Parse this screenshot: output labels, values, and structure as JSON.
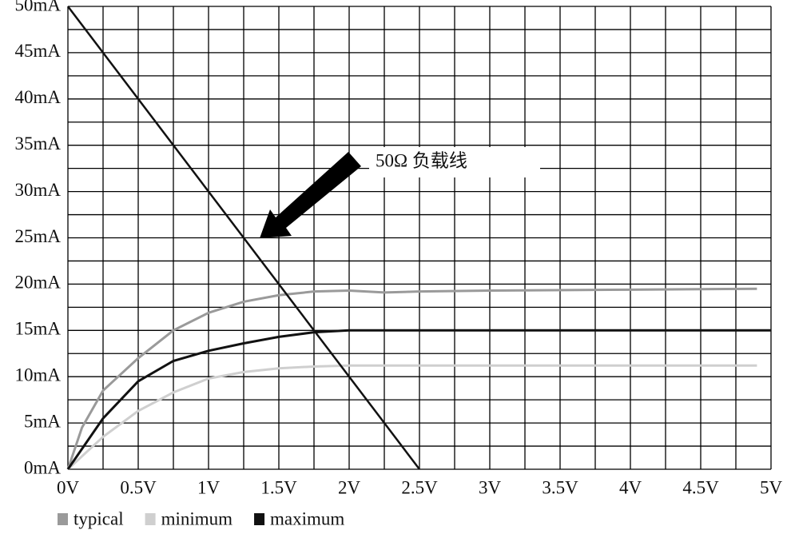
{
  "chart_data": {
    "type": "line",
    "xlim": [
      0,
      5
    ],
    "ylim": [
      0,
      50
    ],
    "xticks": [
      {
        "value": 0,
        "label": "0V"
      },
      {
        "value": 0.5,
        "label": "0.5V"
      },
      {
        "value": 1,
        "label": "1V"
      },
      {
        "value": 1.5,
        "label": "1.5V"
      },
      {
        "value": 2,
        "label": "2V"
      },
      {
        "value": 2.5,
        "label": "2.5V"
      },
      {
        "value": 3,
        "label": "3V"
      },
      {
        "value": 3.5,
        "label": "3.5V"
      },
      {
        "value": 4,
        "label": "4V"
      },
      {
        "value": 4.5,
        "label": "4.5V"
      },
      {
        "value": 5,
        "label": "5V"
      }
    ],
    "yticks": [
      {
        "value": 0,
        "label": "0mA"
      },
      {
        "value": 5,
        "label": "5mA"
      },
      {
        "value": 10,
        "label": "10mA"
      },
      {
        "value": 15,
        "label": "15mA"
      },
      {
        "value": 20,
        "label": "20mA"
      },
      {
        "value": 25,
        "label": "25mA"
      },
      {
        "value": 30,
        "label": "30mA"
      },
      {
        "value": 35,
        "label": "35mA"
      },
      {
        "value": 40,
        "label": "40mA"
      },
      {
        "value": 45,
        "label": "45mA"
      },
      {
        "value": 50,
        "label": "50mA"
      }
    ],
    "grid": true,
    "minor_grid": true,
    "legend": "bottom-left",
    "series": [
      {
        "name": "typical",
        "color": "#9a9a9a",
        "x": [
          0,
          0.1,
          0.25,
          0.5,
          0.75,
          1,
          1.25,
          1.5,
          1.75,
          2,
          2.25,
          2.5,
          3,
          4,
          4.9
        ],
        "values": [
          0,
          4.5,
          8.5,
          12,
          15,
          16.9,
          18.1,
          18.8,
          19.2,
          19.3,
          19.1,
          19.2,
          19.3,
          19.4,
          19.5
        ]
      },
      {
        "name": "minimum",
        "color": "#cfcfcf",
        "x": [
          0,
          0.25,
          0.5,
          0.75,
          1,
          1.25,
          1.5,
          1.75,
          2,
          3,
          4,
          4.9
        ],
        "values": [
          0,
          3.5,
          6.3,
          8.3,
          9.8,
          10.5,
          10.9,
          11.1,
          11.2,
          11.2,
          11.2,
          11.2
        ]
      },
      {
        "name": "maximum",
        "color": "#111111",
        "x": [
          0,
          0.25,
          0.5,
          0.75,
          1,
          1.25,
          1.5,
          1.75,
          2,
          3,
          4,
          5
        ],
        "values": [
          0,
          5.5,
          9.5,
          11.7,
          12.8,
          13.6,
          14.3,
          14.8,
          15,
          15,
          15,
          15
        ]
      }
    ],
    "load_line": {
      "label": "50Ω 负载线",
      "color": "#111111",
      "x": [
        0,
        2.5
      ],
      "values": [
        50,
        0
      ]
    }
  }
}
